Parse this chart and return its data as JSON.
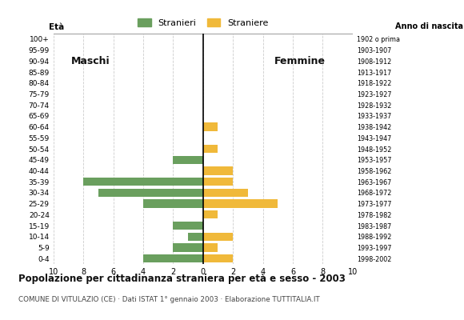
{
  "age_groups": [
    "100+",
    "95-99",
    "90-94",
    "85-89",
    "80-84",
    "75-79",
    "70-74",
    "65-69",
    "60-64",
    "55-59",
    "50-54",
    "45-49",
    "40-44",
    "35-39",
    "30-34",
    "25-29",
    "20-24",
    "15-19",
    "10-14",
    "5-9",
    "0-4"
  ],
  "year_labels": [
    "1902 o prima",
    "1903-1907",
    "1908-1912",
    "1913-1917",
    "1918-1922",
    "1923-1927",
    "1928-1932",
    "1933-1937",
    "1938-1942",
    "1943-1947",
    "1948-1952",
    "1953-1957",
    "1958-1962",
    "1963-1967",
    "1968-1972",
    "1973-1977",
    "1978-1982",
    "1983-1987",
    "1988-1992",
    "1993-1997",
    "1998-2002"
  ],
  "males": [
    0,
    0,
    0,
    0,
    0,
    0,
    0,
    0,
    0,
    0,
    0,
    2,
    0,
    8,
    7,
    4,
    0,
    2,
    1,
    2,
    4
  ],
  "females": [
    0,
    0,
    0,
    0,
    0,
    0,
    0,
    0,
    1,
    0,
    1,
    0,
    2,
    2,
    3,
    5,
    1,
    0,
    2,
    1,
    2
  ],
  "male_color": "#6a9f5e",
  "female_color": "#f0b93a",
  "title": "Popolazione per cittadinanza straniera per età e sesso - 2003",
  "subtitle": "COMUNE DI VITULAZIO (CE) · Dati ISTAT 1° gennaio 2003 · Elaborazione TUTTITALIA.IT",
  "legend_male": "Stranieri",
  "legend_female": "Straniere",
  "age_label": "Età",
  "xlabel_left": "Maschi",
  "xlabel_right": "Femmine",
  "anno_label": "Anno di nascita",
  "xlim": 10,
  "grid_color": "#cccccc",
  "background_color": "#ffffff"
}
